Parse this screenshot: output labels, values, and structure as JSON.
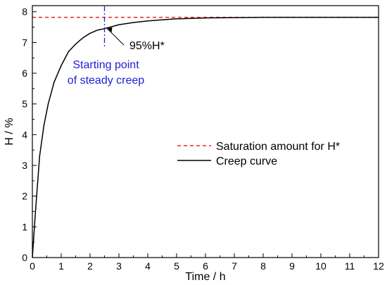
{
  "chart_data": {
    "type": "line",
    "xlabel": "Time / h",
    "ylabel": "H / %",
    "xlim": [
      0,
      12
    ],
    "ylim": [
      0,
      8.2
    ],
    "xticks": [
      0,
      1,
      2,
      3,
      4,
      5,
      6,
      7,
      8,
      9,
      10,
      11,
      12
    ],
    "yticks": [
      0,
      1,
      2,
      3,
      4,
      5,
      6,
      7,
      8
    ],
    "grid": false,
    "legend": {
      "placement": "right-center",
      "entries": [
        "Saturation amount for H*",
        "Creep curve"
      ]
    },
    "series": [
      {
        "name": "Saturation amount for H*",
        "style": "dashed",
        "color": "#e8262a",
        "x": [
          0,
          12
        ],
        "y": [
          7.82,
          7.82
        ]
      },
      {
        "name": "Creep curve",
        "style": "solid",
        "color": "#000000",
        "x": [
          0,
          0.1,
          0.25,
          0.4,
          0.55,
          0.75,
          1.0,
          1.25,
          1.5,
          1.75,
          2.0,
          2.25,
          2.5,
          3.0,
          3.5,
          4.0,
          4.5,
          5.0,
          6.0,
          7.0,
          8.0,
          10.0,
          12.0
        ],
        "y": [
          0,
          1.4,
          3.3,
          4.3,
          5.0,
          5.7,
          6.25,
          6.7,
          6.95,
          7.15,
          7.3,
          7.4,
          7.45,
          7.58,
          7.65,
          7.7,
          7.74,
          7.77,
          7.8,
          7.81,
          7.82,
          7.82,
          7.82
        ]
      }
    ],
    "annotations": [
      {
        "id": "percent",
        "text": "95%H*",
        "target_x": 2.55,
        "target_y": 7.45,
        "text_x": 3.32,
        "text_y": 7.08,
        "color": "#000000"
      },
      {
        "id": "steady",
        "lines": [
          "Starting point",
          "of steady creep"
        ],
        "x": 2.5,
        "color": "#1f1fd6",
        "text_x": 2.5,
        "text_y_top": 6.4
      }
    ]
  }
}
